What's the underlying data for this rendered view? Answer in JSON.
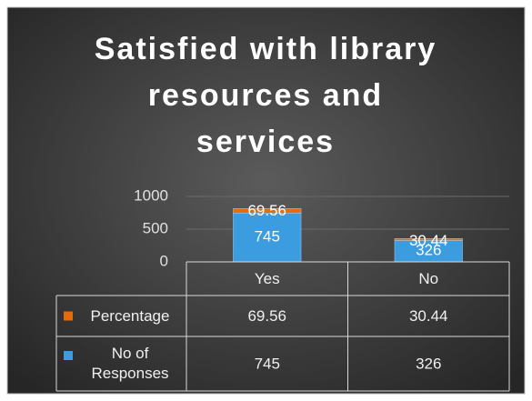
{
  "chart_data": {
    "type": "bar",
    "stacked": true,
    "title": [
      "Satisfied with library",
      "resources and",
      "services"
    ],
    "categories": [
      "Yes",
      "No"
    ],
    "series": [
      {
        "name": "Percentage",
        "color": "#e46c0a",
        "values": [
          69.56,
          30.44
        ]
      },
      {
        "name": "No of Responses",
        "color": "#3c9ce0",
        "values": [
          745,
          326
        ]
      }
    ],
    "ylim": [
      0,
      1000
    ],
    "yticks": [
      0,
      500,
      1000
    ],
    "grid": true,
    "data_table": true
  }
}
